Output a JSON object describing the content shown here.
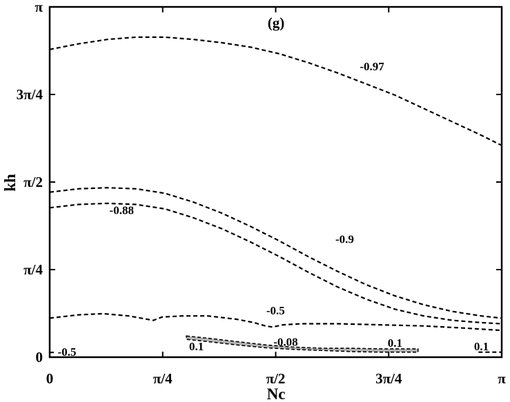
{
  "chart_data": {
    "type": "contour",
    "panel_label": "(g)",
    "xlabel": "Nc",
    "ylabel": "kh",
    "xlim": [
      0,
      3.14159
    ],
    "ylim": [
      0,
      3.14159
    ],
    "x_ticks": [
      {
        "value": 0,
        "label": "0"
      },
      {
        "value": 0.7854,
        "label": "π/4"
      },
      {
        "value": 1.5708,
        "label": "π/2"
      },
      {
        "value": 2.3562,
        "label": "3π/4"
      },
      {
        "value": 3.14159,
        "label": "π"
      }
    ],
    "y_ticks": [
      {
        "value": 0,
        "label": "0"
      },
      {
        "value": 0.7854,
        "label": "π/4"
      },
      {
        "value": 1.5708,
        "label": "π/2"
      },
      {
        "value": 2.3562,
        "label": "3π/4"
      },
      {
        "value": 3.14159,
        "label": "π"
      }
    ],
    "contours": [
      {
        "level": "-0.97",
        "points": [
          [
            0,
            2.76
          ],
          [
            0.2,
            2.81
          ],
          [
            0.4,
            2.85
          ],
          [
            0.6,
            2.87
          ],
          [
            0.8,
            2.87
          ],
          [
            1.0,
            2.85
          ],
          [
            1.2,
            2.82
          ],
          [
            1.4,
            2.78
          ],
          [
            1.6,
            2.72
          ],
          [
            1.8,
            2.64
          ],
          [
            2.0,
            2.55
          ],
          [
            2.2,
            2.45
          ],
          [
            2.4,
            2.35
          ],
          [
            2.6,
            2.23
          ],
          [
            2.8,
            2.11
          ],
          [
            3.0,
            1.99
          ],
          [
            3.14,
            1.9
          ]
        ]
      },
      {
        "level": "-0.9",
        "points": [
          [
            0,
            1.48
          ],
          [
            0.2,
            1.51
          ],
          [
            0.4,
            1.52
          ],
          [
            0.6,
            1.51
          ],
          [
            0.8,
            1.47
          ],
          [
            1.0,
            1.39
          ],
          [
            1.2,
            1.29
          ],
          [
            1.4,
            1.17
          ],
          [
            1.6,
            1.04
          ],
          [
            1.8,
            0.9
          ],
          [
            2.0,
            0.77
          ],
          [
            2.2,
            0.65
          ],
          [
            2.4,
            0.55
          ],
          [
            2.6,
            0.47
          ],
          [
            2.8,
            0.41
          ],
          [
            3.0,
            0.37
          ],
          [
            3.14,
            0.35
          ]
        ]
      },
      {
        "level": "-0.88",
        "points": [
          [
            0,
            1.34
          ],
          [
            0.2,
            1.37
          ],
          [
            0.4,
            1.38
          ],
          [
            0.6,
            1.37
          ],
          [
            0.8,
            1.33
          ],
          [
            1.0,
            1.25
          ],
          [
            1.2,
            1.15
          ],
          [
            1.4,
            1.03
          ],
          [
            1.6,
            0.9
          ],
          [
            1.8,
            0.76
          ],
          [
            2.0,
            0.63
          ],
          [
            2.2,
            0.52
          ],
          [
            2.4,
            0.43
          ],
          [
            2.6,
            0.37
          ],
          [
            2.8,
            0.33
          ],
          [
            3.0,
            0.31
          ],
          [
            3.14,
            0.3
          ]
        ]
      },
      {
        "level": "-0.5",
        "points": [
          [
            0,
            0.35
          ],
          [
            0.2,
            0.38
          ],
          [
            0.37,
            0.39
          ],
          [
            0.55,
            0.37
          ],
          [
            0.72,
            0.33
          ],
          [
            0.78,
            0.36
          ],
          [
            0.92,
            0.37
          ],
          [
            1.1,
            0.37
          ],
          [
            1.3,
            0.34
          ],
          [
            1.42,
            0.31
          ],
          [
            1.5,
            0.28
          ],
          [
            1.55,
            0.27
          ],
          [
            1.62,
            0.29
          ],
          [
            1.75,
            0.3
          ],
          [
            2.0,
            0.3
          ],
          [
            2.3,
            0.29
          ],
          [
            2.6,
            0.28
          ],
          [
            2.9,
            0.26
          ],
          [
            3.14,
            0.24
          ]
        ]
      },
      {
        "level": "-0.5",
        "points": [
          [
            0,
            0.042
          ],
          [
            0.04,
            0.043
          ]
        ]
      },
      {
        "level": "0.1",
        "points": [
          [
            2.98,
            0.045
          ],
          [
            3.14,
            0.045
          ]
        ]
      }
    ],
    "filled_regions": [
      {
        "level": "0.1",
        "points": [
          [
            0.95,
            0.19
          ],
          [
            1.1,
            0.17
          ],
          [
            1.3,
            0.14
          ],
          [
            1.5,
            0.11
          ],
          [
            1.7,
            0.09
          ],
          [
            1.9,
            0.08
          ],
          [
            2.1,
            0.08
          ],
          [
            2.3,
            0.075
          ],
          [
            2.56,
            0.075
          ],
          [
            2.56,
            0.045
          ],
          [
            2.3,
            0.045
          ],
          [
            2.1,
            0.05
          ],
          [
            1.9,
            0.06
          ],
          [
            1.7,
            0.07
          ],
          [
            1.5,
            0.085
          ],
          [
            1.3,
            0.11
          ],
          [
            1.1,
            0.14
          ],
          [
            0.95,
            0.16
          ]
        ]
      }
    ],
    "contour_labels": [
      {
        "text": "-0.97",
        "x": 2.24,
        "y": 2.61
      },
      {
        "text": "-0.88",
        "x": 0.5,
        "y": 1.32
      },
      {
        "text": "-0.9",
        "x": 2.05,
        "y": 1.06
      },
      {
        "text": "-0.5",
        "x": 1.57,
        "y": 0.42
      },
      {
        "text": "-0.08",
        "x": 1.64,
        "y": 0.14
      },
      {
        "text": "0.1",
        "x": 1.02,
        "y": 0.1
      },
      {
        "text": "0.1",
        "x": 2.4,
        "y": 0.13
      },
      {
        "text": "0.1",
        "x": 3.0,
        "y": 0.1
      },
      {
        "text": "-0.5",
        "x": 0.12,
        "y": 0.05
      }
    ],
    "grid": false,
    "legend": "none"
  }
}
